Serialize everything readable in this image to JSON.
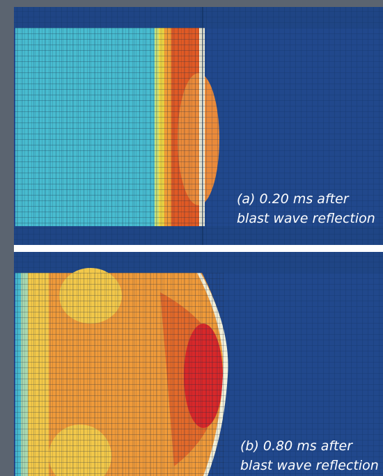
{
  "panels": [
    {
      "caption": [
        "(a) 0.20 ms after",
        "blast wave reflection"
      ]
    },
    {
      "caption": [
        "(b) 0.80 ms after",
        "blast wave reflection"
      ]
    }
  ]
}
